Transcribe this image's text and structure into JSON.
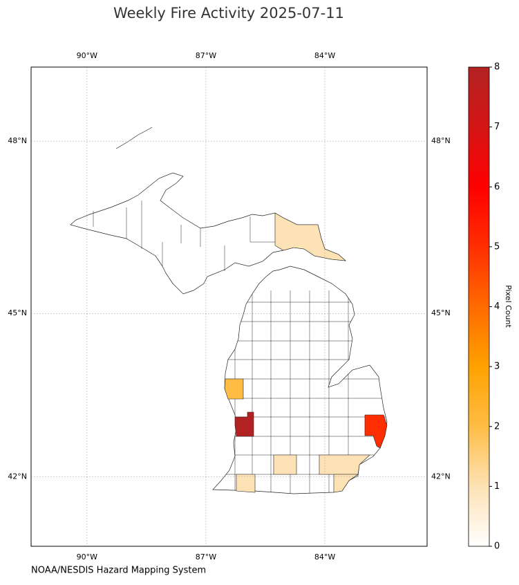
{
  "chart_data": {
    "type": "choropleth",
    "title": "Weekly Fire Activity 2025-07-11",
    "source": "NOAA/NESDIS Hazard Mapping System",
    "values": [
      1,
      2,
      8,
      5,
      1,
      1,
      1,
      1
    ],
    "xlim": [
      -91.41,
      -81.42
    ],
    "ylim": [
      40.68,
      49.24
    ],
    "xticks": [
      {
        "value": -90,
        "label": "90°W"
      },
      {
        "value": -87,
        "label": "87°W"
      },
      {
        "value": -84,
        "label": "84°W"
      }
    ],
    "yticks": [
      {
        "value": 42,
        "label": "42°N"
      },
      {
        "value": 45,
        "label": "45°N"
      },
      {
        "value": 48,
        "label": "48°N"
      }
    ],
    "grid": true,
    "colorbar": {
      "label": "Pixel Count",
      "lim": [
        0,
        8
      ],
      "ticks": [
        0,
        1,
        2,
        3,
        4,
        5,
        6,
        7,
        8
      ],
      "colors": [
        "#ffffff",
        "#fde2b5",
        "#ffbd45",
        "#ffa200",
        "#ff6a00",
        "#ff2e00",
        "#ff0000",
        "#d41515",
        "#b22222"
      ]
    }
  }
}
